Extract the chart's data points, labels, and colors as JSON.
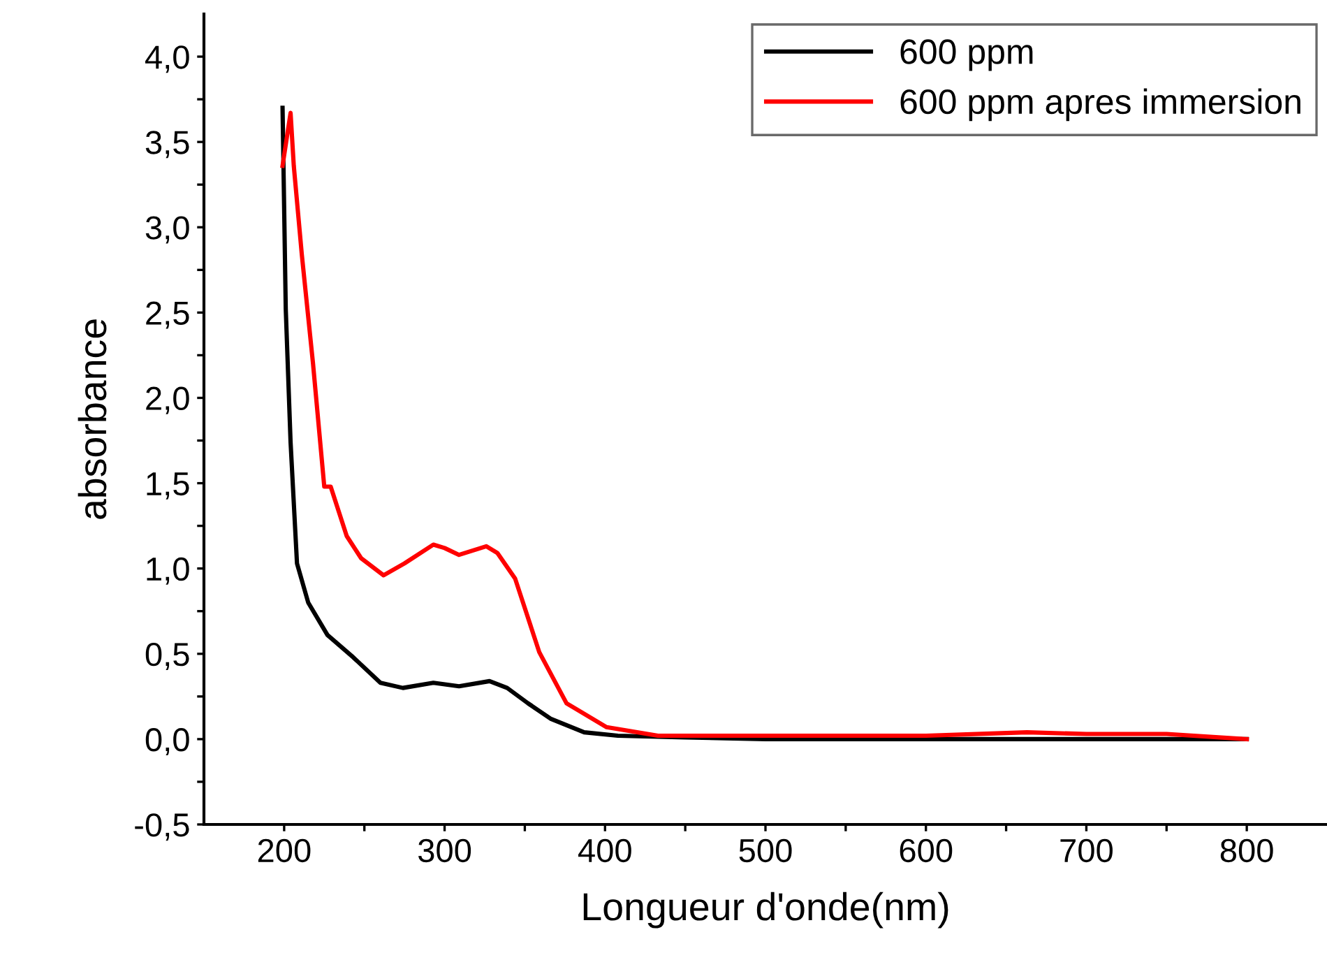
{
  "chart_data": {
    "type": "line",
    "xlabel": "Longueur d'onde(nm)",
    "ylabel": "absorbance",
    "xlim": [
      150,
      850
    ],
    "ylim": [
      -0.5,
      4.25
    ],
    "xticks": [
      {
        "value": 200,
        "label": "200"
      },
      {
        "value": 250,
        "label": null
      },
      {
        "value": 300,
        "label": "300"
      },
      {
        "value": 350,
        "label": null
      },
      {
        "value": 400,
        "label": "400"
      },
      {
        "value": 450,
        "label": null
      },
      {
        "value": 500,
        "label": "500"
      },
      {
        "value": 550,
        "label": null
      },
      {
        "value": 600,
        "label": "600"
      },
      {
        "value": 650,
        "label": null
      },
      {
        "value": 700,
        "label": "700"
      },
      {
        "value": 750,
        "label": null
      },
      {
        "value": 800,
        "label": "800"
      }
    ],
    "yticks": [
      {
        "value": -0.5,
        "label": "-0,5"
      },
      {
        "value": -0.25,
        "label": null
      },
      {
        "value": 0,
        "label": "0,0"
      },
      {
        "value": 0.25,
        "label": null
      },
      {
        "value": 0.5,
        "label": "0,5"
      },
      {
        "value": 0.75,
        "label": null
      },
      {
        "value": 1.0,
        "label": "1,0"
      },
      {
        "value": 1.25,
        "label": null
      },
      {
        "value": 1.5,
        "label": "1,5"
      },
      {
        "value": 1.75,
        "label": null
      },
      {
        "value": 2.0,
        "label": "2,0"
      },
      {
        "value": 2.25,
        "label": null
      },
      {
        "value": 2.5,
        "label": "2,5"
      },
      {
        "value": 2.75,
        "label": null
      },
      {
        "value": 3.0,
        "label": "3,0"
      },
      {
        "value": 3.25,
        "label": null
      },
      {
        "value": 3.5,
        "label": "3,5"
      },
      {
        "value": 3.75,
        "label": null
      },
      {
        "value": 4.0,
        "label": "4,0"
      }
    ],
    "grid": false,
    "legend": "top right",
    "marker": "none",
    "line_style": "solid",
    "series": [
      {
        "name": "600 ppm",
        "color": "#000000",
        "x": [
          199,
          201,
          204,
          208,
          215,
          227,
          243,
          260,
          274,
          293,
          309,
          328,
          339,
          352,
          366,
          387,
          408,
          450,
          500,
          600,
          700,
          800
        ],
        "values": [
          3.7,
          2.52,
          1.74,
          1.03,
          0.8,
          0.61,
          0.48,
          0.33,
          0.3,
          0.33,
          0.31,
          0.34,
          0.3,
          0.21,
          0.12,
          0.04,
          0.02,
          0.01,
          0.0,
          0.0,
          0.0,
          0.0
        ]
      },
      {
        "name": "600 ppm apres immersion",
        "color": "#ff0000",
        "x": [
          199,
          204,
          206,
          211,
          218,
          225,
          229,
          239,
          248,
          262,
          275,
          293,
          300,
          309,
          326,
          333,
          344,
          359,
          376,
          401,
          433,
          500,
          600,
          663,
          700,
          750,
          800
        ],
        "values": [
          3.36,
          3.67,
          3.36,
          2.84,
          2.2,
          1.48,
          1.48,
          1.19,
          1.06,
          0.96,
          1.03,
          1.14,
          1.12,
          1.08,
          1.13,
          1.09,
          0.94,
          0.51,
          0.21,
          0.07,
          0.02,
          0.02,
          0.02,
          0.04,
          0.03,
          0.03,
          0.0
        ]
      }
    ]
  }
}
